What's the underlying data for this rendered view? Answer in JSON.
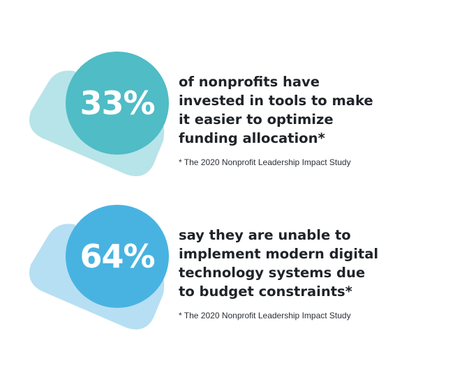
{
  "stats": [
    {
      "percent": "33%",
      "lines": [
        "of nonprofits have",
        "invested in tools to make",
        "it easier to optimize",
        "funding allocation*"
      ],
      "source": "* The 2020 Nonprofit Leadership Impact Study",
      "circle_color": "#4fbcc6",
      "blob_color": "#b7e4e8"
    },
    {
      "percent": "64%",
      "lines": [
        "say they are unable to",
        "implement modern digital",
        "technology systems due",
        "to budget constraints*"
      ],
      "source": "* The 2020 Nonprofit Leadership Impact Study",
      "circle_color": "#48b3e1",
      "blob_color": "#b6dff3"
    }
  ]
}
